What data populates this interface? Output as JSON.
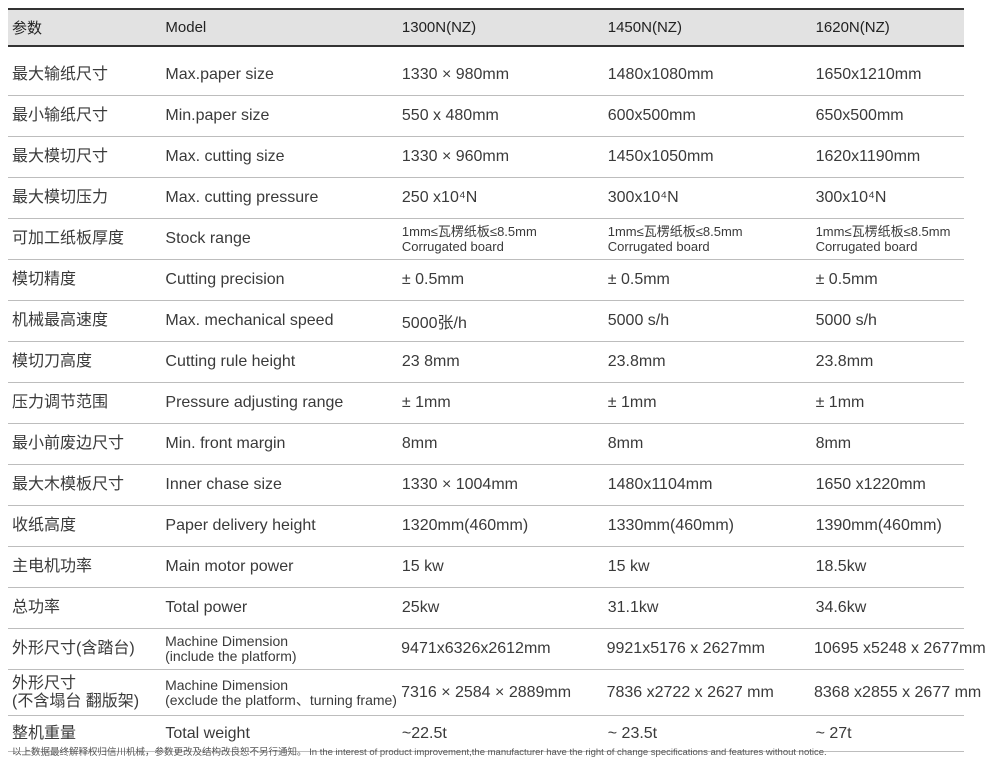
{
  "header": [
    "参数",
    "Model",
    "1300N(NZ)",
    "1450N(NZ)",
    "1620N(NZ)"
  ],
  "rows": [
    {
      "cn": "最大输纸尺寸",
      "en": "Max.paper size",
      "v": [
        "1330 × 980mm",
        "1480x1080mm",
        "1650x1210mm"
      ]
    },
    {
      "cn": "最小输纸尺寸",
      "en": "Min.paper size",
      "v": [
        "550 x 480mm",
        "600x500mm",
        "650x500mm"
      ]
    },
    {
      "cn": "最大模切尺寸",
      "en": "Max. cutting size",
      "v": [
        "1330 × 960mm",
        "1450x1050mm",
        "1620x1190mm"
      ]
    },
    {
      "cn": "最大模切压力",
      "en": "Max. cutting pressure",
      "v": [
        "250 x10⁴N",
        "300x10⁴N",
        "300x10⁴N"
      ]
    },
    {
      "cn": "可加工纸板厚度",
      "en": "Stock range",
      "v": [
        "1mm≤瓦楞纸板≤8.5mm",
        "1mm≤瓦楞纸板≤8.5mm",
        "1mm≤瓦楞纸板≤8.5mm"
      ],
      "v2": [
        "Corrugated board",
        "Corrugated board",
        "Corrugated board"
      ]
    },
    {
      "cn": "模切精度",
      "en": "Cutting precision",
      "v": [
        "± 0.5mm",
        "± 0.5mm",
        "± 0.5mm"
      ]
    },
    {
      "cn": "机械最高速度",
      "en": "Max. mechanical speed",
      "v": [
        "5000张/h",
        "5000 s/h",
        "5000 s/h"
      ]
    },
    {
      "cn": "模切刀高度",
      "en": "Cutting rule height",
      "v": [
        "23 8mm",
        "23.8mm",
        "23.8mm"
      ]
    },
    {
      "cn": "压力调节范围",
      "en": "Pressure adjusting range",
      "v": [
        "± 1mm",
        "± 1mm",
        "± 1mm"
      ]
    },
    {
      "cn": "最小前废边尺寸",
      "en": "Min. front margin",
      "v": [
        "8mm",
        "8mm",
        "8mm"
      ]
    },
    {
      "cn": "最大木模板尺寸",
      "en": "Inner chase size",
      "v": [
        "1330 × 1004mm",
        "1480x1104mm",
        "1650 x1220mm"
      ]
    },
    {
      "cn": "收纸高度",
      "en": "Paper delivery height",
      "v": [
        "1320mm(460mm)",
        "1330mm(460mm)",
        "1390mm(460mm)"
      ]
    },
    {
      "cn": "主电机功率",
      "en": "Main motor power",
      "v": [
        "15 kw",
        "15 kw",
        "18.5kw"
      ]
    },
    {
      "cn": "总功率",
      "en": "Total power",
      "v": [
        "25kw",
        "31.1kw",
        "34.6kw"
      ]
    },
    {
      "cn": "外形尺寸(含踏台)",
      "en": "Machine Dimension",
      "en2": "(include the platform)",
      "v": [
        "9471x6326x2612mm",
        "9921x5176 x 2627mm",
        "10695 x5248 x 2677mm"
      ]
    },
    {
      "cn": "外形尺寸",
      "cn2": "(不含塌台 翻版架)",
      "en": "Machine Dimension",
      "en2": "(exclude the platform、turning frame)",
      "v": [
        "7316 × 2584 × 2889mm",
        "7836 x2722 x 2627 mm",
        "8368 x2855 x 2677 mm"
      ]
    },
    {
      "cn": "整机重量",
      "en": "Total weight",
      "v": [
        "~22.5t",
        "~ 23.5t",
        "~ 27t"
      ]
    }
  ],
  "footer": "以上数据最终解释权归信川机械，参数更改及结构改良恕不另行通知。  In the interest of product improvement,the manufacturer have the right of change specifications and features without notice."
}
